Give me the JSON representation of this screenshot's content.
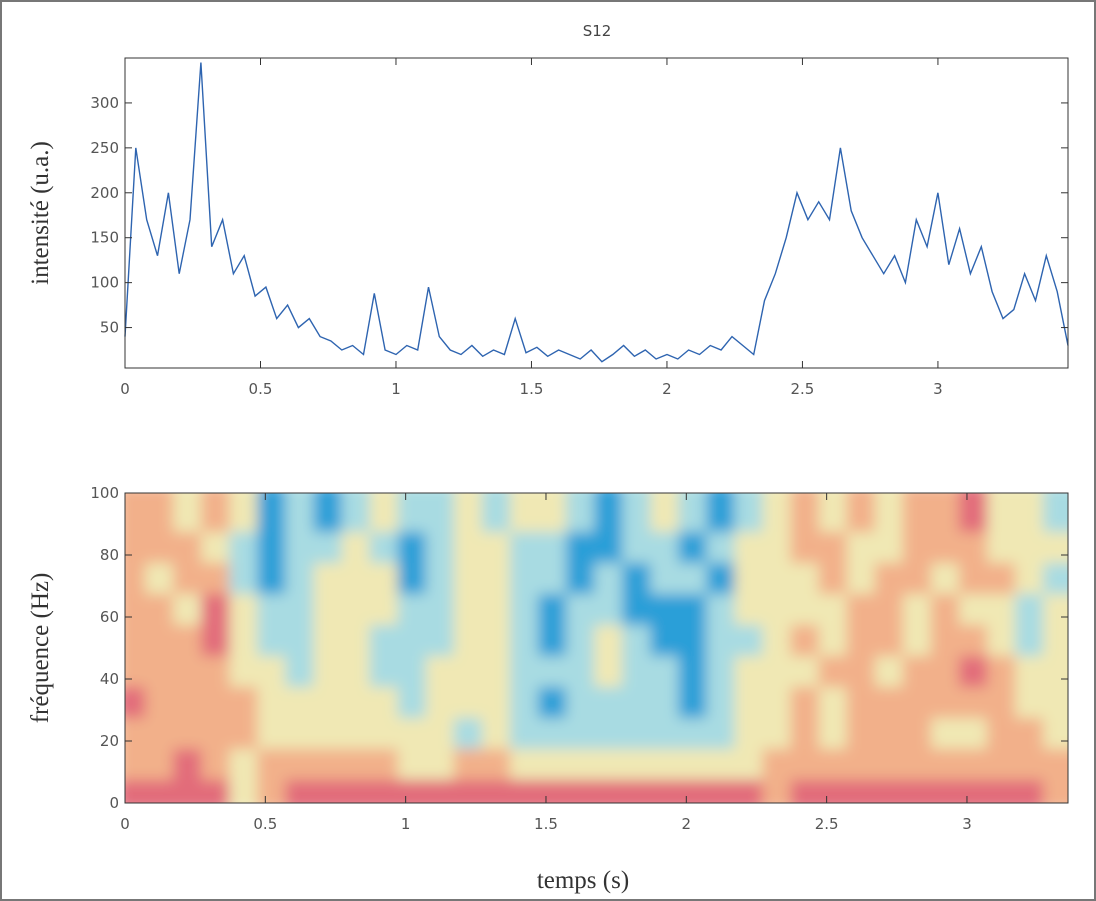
{
  "chart_data": [
    {
      "type": "line",
      "title": "S12",
      "ylabel": "intensité (u.a.)",
      "color": "#2e64b0",
      "x": [
        0,
        0.04,
        0.08,
        0.12,
        0.16,
        0.2,
        0.24,
        0.28,
        0.32,
        0.36,
        0.4,
        0.44,
        0.48,
        0.52,
        0.56,
        0.6,
        0.64,
        0.68,
        0.72,
        0.76,
        0.8,
        0.84,
        0.88,
        0.92,
        0.96,
        1,
        1.04,
        1.08,
        1.12,
        1.16,
        1.2,
        1.24,
        1.28,
        1.32,
        1.36,
        1.4,
        1.44,
        1.48,
        1.52,
        1.56,
        1.6,
        1.64,
        1.68,
        1.72,
        1.76,
        1.8,
        1.84,
        1.88,
        1.92,
        1.96,
        2,
        2.04,
        2.08,
        2.12,
        2.16,
        2.2,
        2.24,
        2.28,
        2.32,
        2.36,
        2.4,
        2.44,
        2.48,
        2.52,
        2.56,
        2.6,
        2.64,
        2.68,
        2.72,
        2.76,
        2.8,
        2.84,
        2.88,
        2.92,
        2.96,
        3,
        3.04,
        3.08,
        3.12,
        3.16,
        3.2,
        3.24,
        3.28,
        3.32,
        3.36,
        3.4,
        3.44,
        3.48
      ],
      "values": [
        40,
        250,
        170,
        130,
        200,
        110,
        170,
        345,
        140,
        170,
        110,
        130,
        85,
        95,
        60,
        75,
        50,
        60,
        40,
        35,
        25,
        30,
        20,
        88,
        25,
        20,
        30,
        25,
        95,
        40,
        25,
        20,
        30,
        18,
        25,
        20,
        60,
        22,
        28,
        18,
        25,
        20,
        15,
        25,
        12,
        20,
        30,
        18,
        25,
        15,
        20,
        15,
        25,
        20,
        30,
        25,
        40,
        30,
        20,
        80,
        110,
        150,
        200,
        170,
        190,
        170,
        250,
        180,
        150,
        130,
        110,
        130,
        100,
        170,
        140,
        200,
        120,
        160,
        110,
        140,
        90,
        60,
        70,
        110,
        80,
        130,
        90,
        30
      ],
      "xlim": [
        0,
        3.48
      ],
      "ylim": [
        5,
        350
      ],
      "xticks": [
        0,
        0.5,
        1,
        1.5,
        2,
        2.5,
        3
      ],
      "yticks": [
        50,
        100,
        150,
        200,
        250,
        300
      ]
    },
    {
      "type": "heatmap",
      "xlabel": "temps (s)",
      "ylabel": "fréquence (Hz)",
      "colors": [
        "#2a9fd8",
        "#a8dbe2",
        "#f0e8b4",
        "#f2b08a",
        "#e26c7a"
      ],
      "x": [
        0.05,
        0.15,
        0.25,
        0.35,
        0.45,
        0.55,
        0.65,
        0.75,
        0.85,
        0.95,
        1.05,
        1.15,
        1.25,
        1.35,
        1.45,
        1.55,
        1.65,
        1.75,
        1.85,
        1.95,
        2.05,
        2.15,
        2.25,
        2.35,
        2.45,
        2.55,
        2.65,
        2.75,
        2.85,
        2.95,
        3.05,
        3.15,
        3.25,
        3.35
      ],
      "y": [
        5,
        15,
        25,
        35,
        45,
        55,
        65,
        75,
        85,
        95
      ],
      "z": [
        [
          4,
          4,
          4,
          4,
          2,
          3,
          4,
          4,
          4,
          4,
          4,
          4,
          4,
          4,
          4,
          4,
          4,
          4,
          4,
          4,
          4,
          4,
          4,
          3,
          4,
          4,
          4,
          4,
          4,
          4,
          4,
          4,
          4,
          3
        ],
        [
          3,
          3,
          4,
          3,
          2,
          3,
          3,
          3,
          3,
          3,
          2,
          2,
          3,
          3,
          2,
          2,
          2,
          2,
          2,
          2,
          2,
          2,
          2,
          3,
          3,
          3,
          3,
          3,
          3,
          3,
          3,
          3,
          3,
          3
        ],
        [
          3,
          3,
          3,
          3,
          3,
          2,
          2,
          2,
          2,
          2,
          2,
          2,
          1,
          2,
          1,
          1,
          1,
          1,
          1,
          1,
          1,
          1,
          2,
          2,
          3,
          2,
          3,
          3,
          3,
          2,
          2,
          3,
          3,
          2
        ],
        [
          4,
          3,
          3,
          3,
          3,
          2,
          2,
          2,
          2,
          2,
          1,
          2,
          2,
          2,
          1,
          0,
          1,
          1,
          1,
          1,
          0,
          1,
          2,
          2,
          3,
          2,
          3,
          3,
          3,
          3,
          3,
          3,
          2,
          2
        ],
        [
          3,
          3,
          3,
          3,
          2,
          2,
          1,
          2,
          2,
          1,
          1,
          2,
          2,
          2,
          1,
          1,
          1,
          2,
          1,
          1,
          0,
          1,
          2,
          2,
          2,
          3,
          3,
          2,
          3,
          3,
          4,
          3,
          2,
          2
        ],
        [
          3,
          3,
          3,
          4,
          2,
          1,
          1,
          2,
          2,
          1,
          1,
          1,
          2,
          2,
          1,
          0,
          1,
          2,
          1,
          0,
          0,
          1,
          1,
          2,
          3,
          2,
          3,
          3,
          2,
          3,
          3,
          2,
          1,
          2
        ],
        [
          3,
          3,
          2,
          4,
          2,
          1,
          1,
          2,
          2,
          2,
          1,
          1,
          2,
          2,
          1,
          0,
          1,
          1,
          0,
          0,
          0,
          1,
          2,
          2,
          2,
          2,
          3,
          3,
          2,
          3,
          2,
          2,
          1,
          2
        ],
        [
          3,
          2,
          3,
          3,
          1,
          0,
          1,
          2,
          2,
          2,
          0,
          1,
          2,
          2,
          1,
          1,
          0,
          1,
          0,
          1,
          1,
          0,
          2,
          2,
          2,
          3,
          2,
          3,
          3,
          2,
          3,
          3,
          2,
          1
        ],
        [
          3,
          3,
          3,
          2,
          1,
          0,
          1,
          1,
          2,
          1,
          0,
          1,
          2,
          2,
          1,
          1,
          0,
          0,
          1,
          1,
          0,
          1,
          2,
          2,
          3,
          3,
          2,
          2,
          3,
          3,
          3,
          2,
          2,
          2
        ],
        [
          3,
          3,
          2,
          3,
          2,
          0,
          1,
          0,
          1,
          2,
          1,
          1,
          2,
          1,
          2,
          2,
          1,
          0,
          1,
          2,
          1,
          0,
          1,
          2,
          3,
          2,
          3,
          2,
          3,
          3,
          4,
          2,
          2,
          1
        ]
      ],
      "xlim": [
        0,
        3.36
      ],
      "ylim": [
        0,
        100
      ],
      "xticks": [
        0,
        0.5,
        1,
        1.5,
        2,
        2.5,
        3
      ],
      "yticks": [
        0,
        20,
        40,
        60,
        80,
        100
      ]
    }
  ]
}
